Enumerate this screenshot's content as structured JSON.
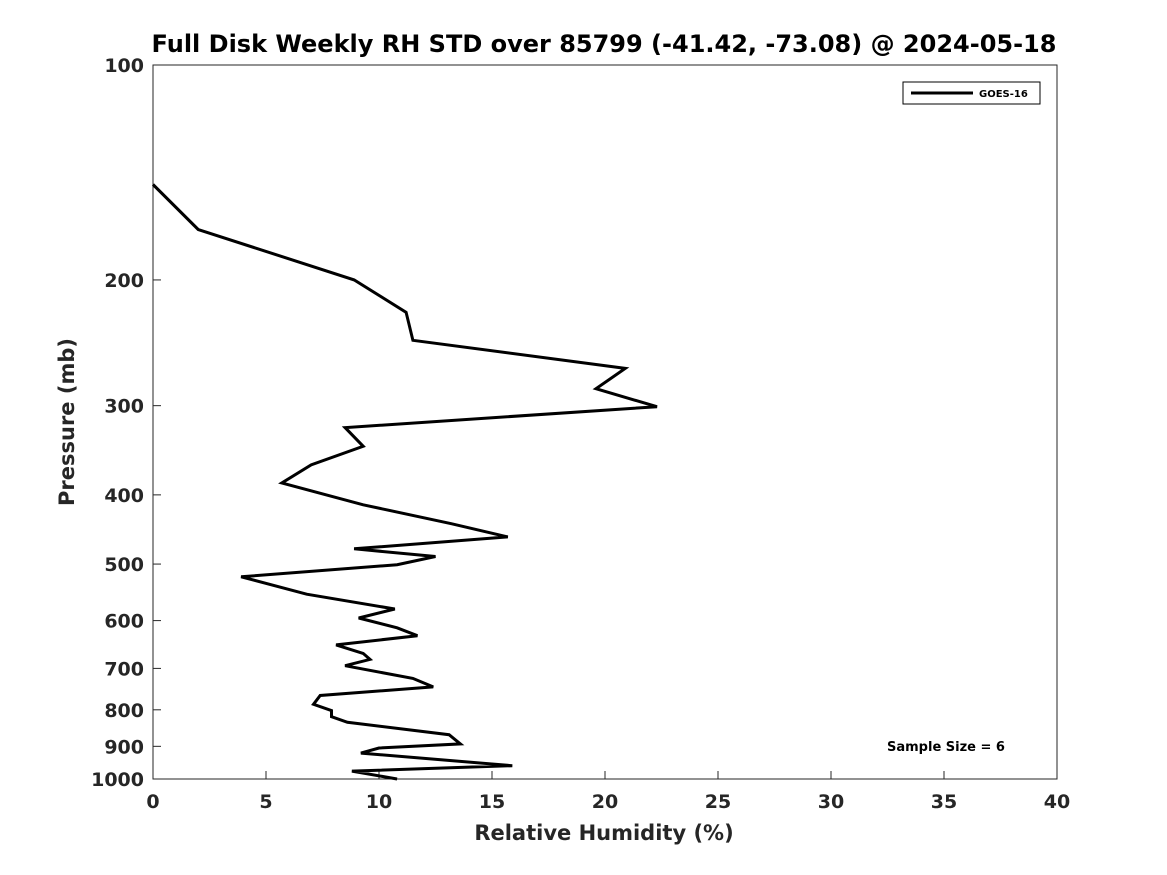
{
  "chart_data": {
    "type": "line",
    "title": "Full Disk Weekly RH STD over 85799 (-41.42, -73.08) @ 2024-05-18",
    "xlabel": "Relative Humidity (%)",
    "ylabel": "Pressure (mb)",
    "xlim": [
      0,
      40
    ],
    "ylim": [
      100,
      1000
    ],
    "y_scale": "log",
    "y_reversed": true,
    "x_ticks": [
      0,
      5,
      10,
      15,
      20,
      25,
      30,
      35,
      40
    ],
    "y_ticks": [
      100,
      200,
      300,
      400,
      500,
      600,
      700,
      800,
      900,
      1000
    ],
    "grid": false,
    "legend_position": "top-right",
    "annotation": "Sample Size = 6",
    "series": [
      {
        "name": "GOES-16",
        "color": "#000000",
        "points": [
          [
            0,
            147
          ],
          [
            2,
            170
          ],
          [
            8.9,
            200
          ],
          [
            11.2,
            222
          ],
          [
            11.5,
            243
          ],
          [
            20.9,
            266
          ],
          [
            19.6,
            284
          ],
          [
            22.3,
            301
          ],
          [
            8.5,
            322
          ],
          [
            9.3,
            342
          ],
          [
            7.0,
            363
          ],
          [
            5.7,
            385
          ],
          [
            9.3,
            413
          ],
          [
            13.2,
            439
          ],
          [
            15.7,
            458
          ],
          [
            8.9,
            476
          ],
          [
            12.5,
            488
          ],
          [
            10.8,
            501
          ],
          [
            3.9,
            521
          ],
          [
            6.8,
            551
          ],
          [
            10.7,
            578
          ],
          [
            9.1,
            595
          ],
          [
            10.8,
            614
          ],
          [
            11.7,
            630
          ],
          [
            8.1,
            649
          ],
          [
            9.3,
            667
          ],
          [
            9.6,
            680
          ],
          [
            8.5,
            694
          ],
          [
            11.5,
            723
          ],
          [
            12.4,
            743
          ],
          [
            7.4,
            764
          ],
          [
            7.1,
            786
          ],
          [
            7.9,
            802
          ],
          [
            7.9,
            818
          ],
          [
            8.6,
            833
          ],
          [
            13.1,
            867
          ],
          [
            13.6,
            893
          ],
          [
            10.0,
            905
          ],
          [
            9.2,
            920
          ],
          [
            15.9,
            958
          ],
          [
            8.8,
            975
          ],
          [
            10.8,
            1000
          ]
        ]
      }
    ]
  }
}
